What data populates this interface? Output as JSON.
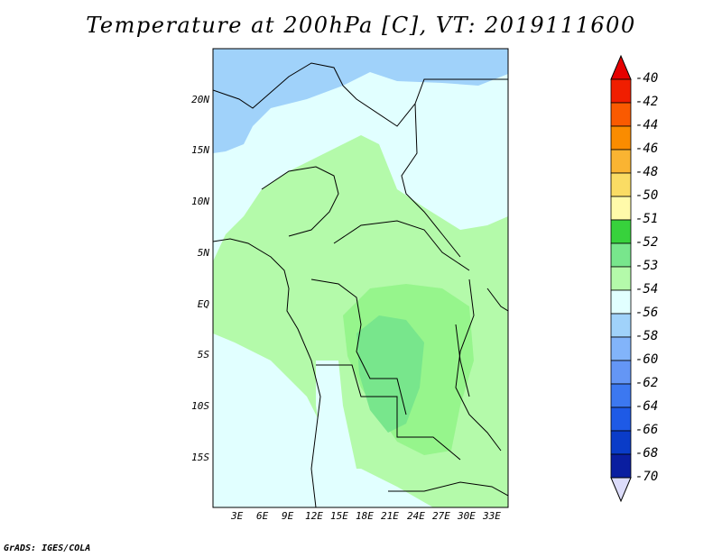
{
  "title": "Temperature at 200hPa [C], VT: 2019111600",
  "credit": "GrADS: IGES/COLA",
  "map": {
    "lat_ticks": [
      "20N",
      "15N",
      "10N",
      "5N",
      "EQ",
      "5S",
      "10S",
      "15S"
    ],
    "lon_ticks": [
      "3E",
      "6E",
      "9E",
      "12E",
      "15E",
      "18E",
      "21E",
      "24E",
      "27E",
      "30E",
      "33E"
    ],
    "region_colors": {
      "very_cold": "#a0d2fa",
      "cold": "#e1ffff",
      "mid": "#b4faaa",
      "warm": "#96f58c",
      "warmer": "#78e68c",
      "border": "#000000"
    }
  },
  "colorbar": {
    "labels": [
      "-40",
      "-42",
      "-44",
      "-46",
      "-48",
      "-50",
      "-51",
      "-52",
      "-53",
      "-54",
      "-56",
      "-58",
      "-60",
      "-62",
      "-64",
      "-66",
      "-68",
      "-70"
    ],
    "colors": [
      "#f01e00",
      "#fa5a00",
      "#fa8c00",
      "#fab432",
      "#fadc64",
      "#fffaaa",
      "#37d23c",
      "#78e68c",
      "#b4faaa",
      "#e1ffff",
      "#a0d2fa",
      "#82b4fa",
      "#6496f5",
      "#3c78f0",
      "#1e5ae6",
      "#0a3cc8",
      "#0a1ea0",
      "#dcdcfa"
    ],
    "top_arrow_color": "#e60000",
    "bottom_arrow_color": "#dcdcfa"
  }
}
